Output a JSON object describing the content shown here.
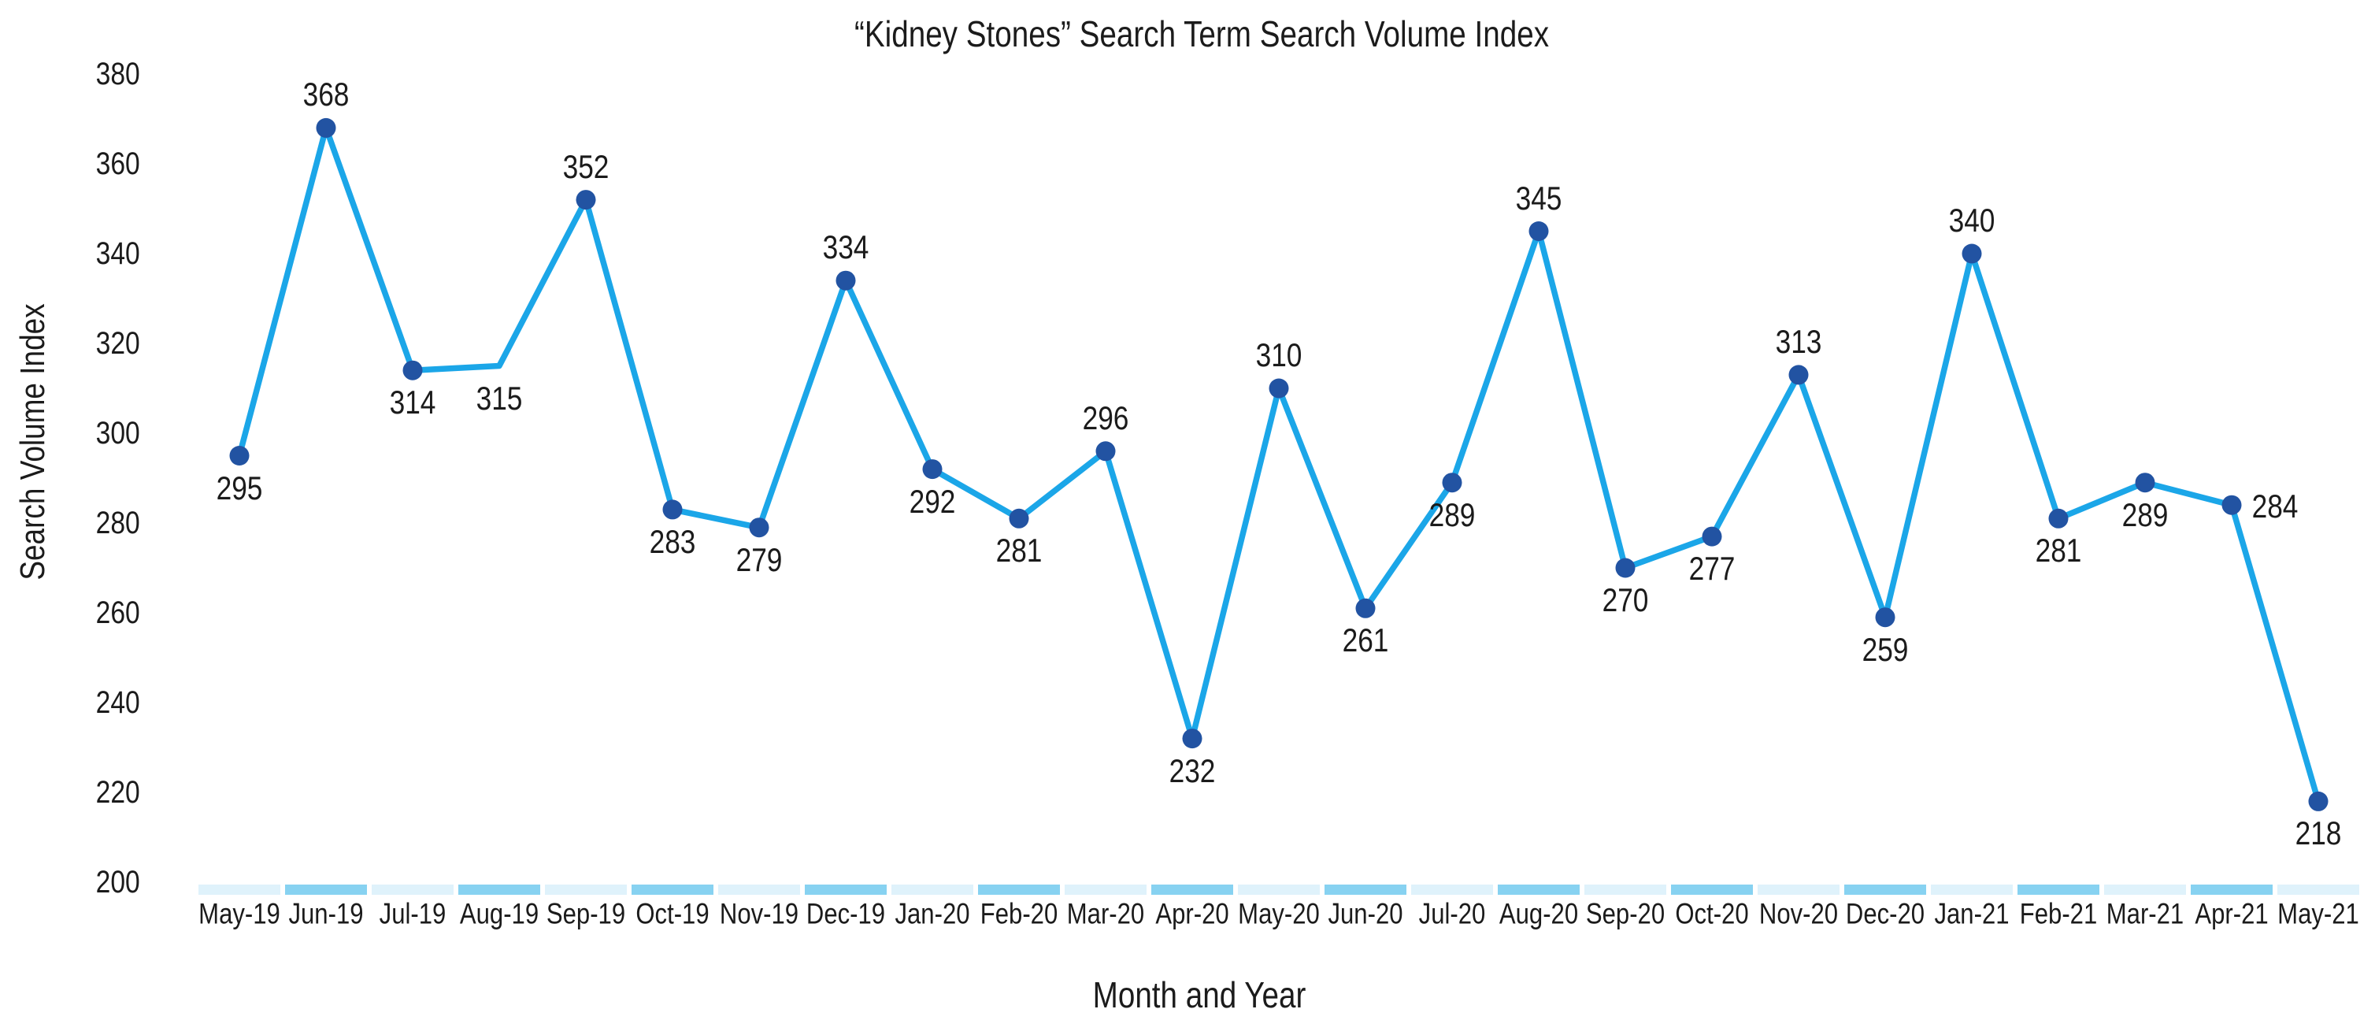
{
  "chart_data": {
    "type": "line",
    "title": "“Kidney Stones” Search Term Search Volume Index",
    "xlabel": "Month and Year",
    "ylabel": "Search Volume Index",
    "categories": [
      "May-19",
      "Jun-19",
      "Jul-19",
      "Aug-19",
      "Sep-19",
      "Oct-19",
      "Nov-19",
      "Dec-19",
      "Jan-20",
      "Feb-20",
      "Mar-20",
      "Apr-20",
      "May-20",
      "Jun-20",
      "Jul-20",
      "Aug-20",
      "Sep-20",
      "Oct-20",
      "Nov-20",
      "Dec-20",
      "Jan-21",
      "Feb-21",
      "Mar-21",
      "Apr-21",
      "May-21"
    ],
    "values": [
      295,
      368,
      314,
      315,
      352,
      283,
      279,
      334,
      292,
      281,
      296,
      232,
      310,
      261,
      289,
      345,
      270,
      277,
      313,
      259,
      340,
      281,
      289,
      284,
      218
    ],
    "label_positions": [
      "below",
      "above",
      "below",
      "below",
      "above",
      "below",
      "below",
      "above",
      "below",
      "below",
      "above",
      "below",
      "above",
      "below",
      "below",
      "above",
      "below",
      "below",
      "above",
      "below",
      "above",
      "below",
      "below",
      "right",
      "below"
    ],
    "markerless_categories": [
      "Aug-19"
    ],
    "y_ticks": [
      380,
      360,
      340,
      320,
      300,
      280,
      260,
      240,
      220,
      200
    ],
    "ylim": [
      200,
      380
    ],
    "grid": "off",
    "legend": "none",
    "marker_style": "filled-circle",
    "colors": {
      "line": "#1BA6E8",
      "marker": "#2253A2",
      "text": "#1B1B1B",
      "stripe_light": "#DFF2FB",
      "stripe_dark": "#87D2F1"
    }
  }
}
